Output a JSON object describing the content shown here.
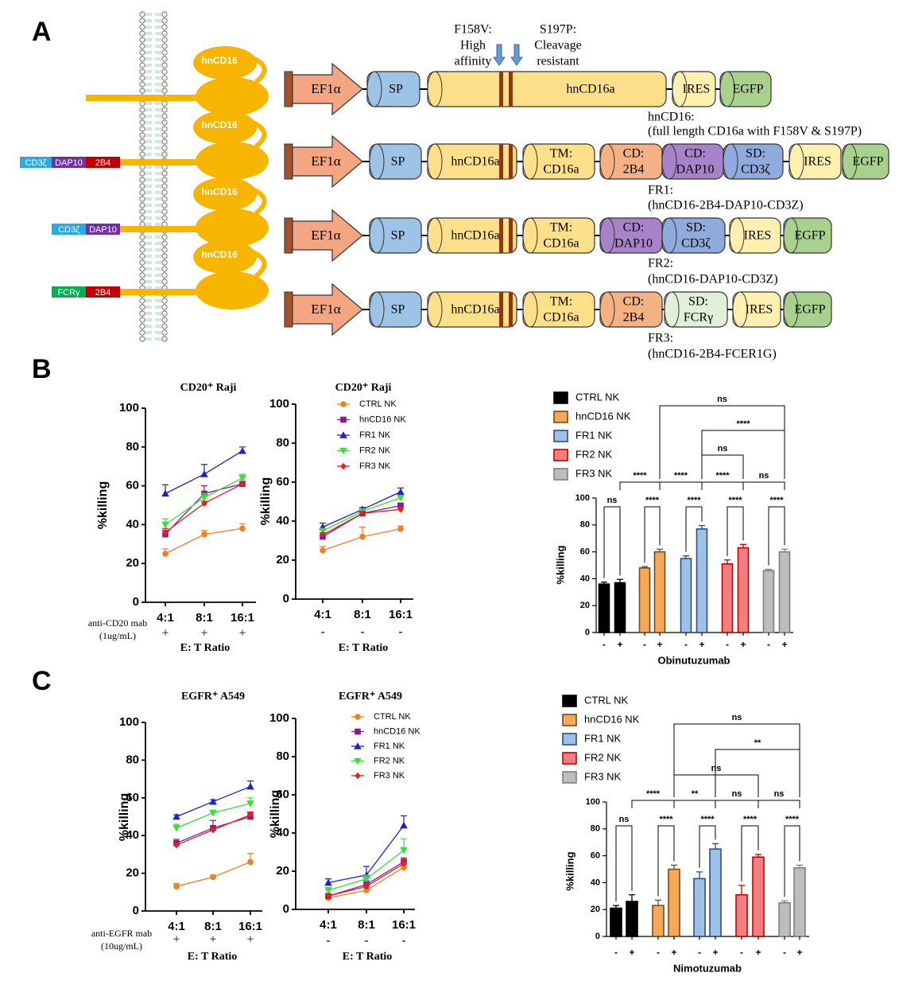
{
  "panels": [
    "A",
    "B",
    "C"
  ],
  "diagram": {
    "mutations": [
      [
        "F158V:",
        "High",
        "affinity"
      ],
      [
        "S197P:",
        "Cleavage",
        "resistant"
      ]
    ],
    "receptors": [
      {
        "ectodomain": "hnCD16",
        "intracellular": []
      },
      {
        "ectodomain": "hnCD16",
        "intracellular": [
          {
            "name": "CD3ζ",
            "color": "#29abe2"
          },
          {
            "name": "DAP10",
            "color": "#7030a0"
          },
          {
            "name": "2B4",
            "color": "#c00000"
          }
        ]
      },
      {
        "ectodomain": "hnCD16",
        "intracellular": [
          {
            "name": "CD3ζ",
            "color": "#29abe2"
          },
          {
            "name": "DAP10",
            "color": "#7030a0"
          }
        ]
      },
      {
        "ectodomain": "hnCD16",
        "intracellular": [
          {
            "name": "FCRγ",
            "color": "#00b050"
          },
          {
            "name": "2B4",
            "color": "#c00000"
          }
        ]
      }
    ],
    "constructs": [
      {
        "promoter": "EF1α",
        "segments": [
          {
            "text": [
              "SP"
            ],
            "color": "#9dc3e6"
          },
          {
            "text": [
              "hnCD16a"
            ],
            "color": "#ffe08a"
          },
          {
            "text": [
              "IRES"
            ],
            "color": "#fff0b0"
          },
          {
            "text": [
              "EGFP"
            ],
            "color": "#a9d18e"
          }
        ],
        "caption": [
          "hnCD16:",
          "(full length CD16a with F158V & S197P)"
        ]
      },
      {
        "promoter": "EF1α",
        "segments": [
          {
            "text": [
              "SP"
            ],
            "color": "#9dc3e6"
          },
          {
            "text": [
              "hnCD16a"
            ],
            "color": "#ffe08a"
          },
          {
            "text": [
              "TM:",
              "CD16a"
            ],
            "color": "#ffe08a"
          },
          {
            "text": [
              "CD:",
              "2B4"
            ],
            "color": "#f4b183"
          },
          {
            "text": [
              "CD:",
              "DAP10"
            ],
            "color": "#a983c9"
          },
          {
            "text": [
              "SD:",
              "CD3ζ"
            ],
            "color": "#8faadc"
          },
          {
            "text": [
              "IRES"
            ],
            "color": "#fff0b0"
          },
          {
            "text": [
              "EGFP"
            ],
            "color": "#a9d18e"
          }
        ],
        "caption": [
          "FR1:",
          "(hnCD16-2B4-DAP10-CD3Z)"
        ]
      },
      {
        "promoter": "EF1α",
        "segments": [
          {
            "text": [
              "SP"
            ],
            "color": "#9dc3e6"
          },
          {
            "text": [
              "hnCD16a"
            ],
            "color": "#ffe08a"
          },
          {
            "text": [
              "TM:",
              "CD16a"
            ],
            "color": "#ffe08a"
          },
          {
            "text": [
              "CD:",
              "DAP10"
            ],
            "color": "#a983c9"
          },
          {
            "text": [
              "SD:",
              "CD3ζ"
            ],
            "color": "#8faadc"
          },
          {
            "text": [
              "IRES"
            ],
            "color": "#fff0b0"
          },
          {
            "text": [
              "EGFP"
            ],
            "color": "#a9d18e"
          }
        ],
        "caption": [
          "FR2:",
          "(hnCD16-DAP10-CD3Z)"
        ]
      },
      {
        "promoter": "EF1α",
        "segments": [
          {
            "text": [
              "SP"
            ],
            "color": "#9dc3e6"
          },
          {
            "text": [
              "hnCD16a"
            ],
            "color": "#ffe08a"
          },
          {
            "text": [
              "TM:",
              "CD16a"
            ],
            "color": "#ffe08a"
          },
          {
            "text": [
              "CD:",
              "2B4"
            ],
            "color": "#f4b183"
          },
          {
            "text": [
              "SD:",
              "FCRγ"
            ],
            "color": "#e2f0d9"
          },
          {
            "text": [
              "IRES"
            ],
            "color": "#fff0b0"
          },
          {
            "text": [
              "EGFP"
            ],
            "color": "#a9d18e"
          }
        ],
        "caption": [
          "FR3:",
          "(hnCD16-2B4-FCER1G)"
        ]
      }
    ]
  },
  "chart_data": [
    {
      "type": "line",
      "title": "CD20⁺ Raji",
      "ylabel": "%killing",
      "xlabel": "E: T Ratio",
      "treatment_label": [
        "anti-CD20 mab",
        "(1ug/mL)"
      ],
      "treatment": [
        "+",
        "+",
        "+"
      ],
      "categories": [
        "4:1",
        "8:1",
        "16:1"
      ],
      "ylim": [
        0,
        100
      ],
      "yticks": [
        0,
        20,
        40,
        60,
        80,
        100
      ],
      "series": [
        {
          "color": "#f08020",
          "marker": "o",
          "values": [
            25,
            35,
            38
          ],
          "errors": [
            2.5,
            2,
            2.5
          ]
        },
        {
          "color": "#8b1a8b",
          "marker": "s",
          "values": [
            35,
            56,
            61
          ],
          "errors": [
            2,
            4,
            1
          ]
        },
        {
          "color": "#1f1fd0",
          "marker": "^",
          "values": [
            56,
            66,
            78
          ],
          "errors": [
            4.5,
            5,
            2
          ]
        },
        {
          "color": "#3adf3a",
          "marker": "v",
          "values": [
            40,
            54,
            64
          ],
          "errors": [
            3,
            2,
            2
          ]
        },
        {
          "color": "#e02020",
          "marker": "D",
          "values": [
            36,
            51,
            61
          ],
          "errors": [
            2,
            1,
            1
          ]
        }
      ]
    },
    {
      "type": "line",
      "title": "CD20⁺ Raji",
      "ylabel": "%killing",
      "xlabel": "E: T Ratio",
      "treatment": [
        "-",
        "-",
        "-"
      ],
      "categories": [
        "4:1",
        "8:1",
        "16:1"
      ],
      "ylim": [
        0,
        100
      ],
      "yticks": [
        0,
        20,
        40,
        60,
        80,
        100
      ],
      "series": [
        {
          "name": "CTRL NK",
          "color": "#f08020",
          "marker": "o",
          "values": [
            25,
            32,
            36
          ],
          "errors": [
            2,
            5,
            1.5
          ]
        },
        {
          "name": "hnCD16 NK",
          "color": "#8b1a8b",
          "marker": "s",
          "values": [
            32,
            44,
            48
          ],
          "errors": [
            2,
            1,
            1
          ]
        },
        {
          "name": "FR1 NK",
          "color": "#1f1fd0",
          "marker": "^",
          "values": [
            37,
            46,
            55
          ],
          "errors": [
            2,
            1,
            2
          ]
        },
        {
          "name": "FR2 NK",
          "color": "#3adf3a",
          "marker": "v",
          "values": [
            35,
            45,
            52
          ],
          "errors": [
            1,
            1,
            1
          ]
        },
        {
          "name": "FR3 NK",
          "color": "#e02020",
          "marker": "D",
          "values": [
            33,
            44,
            46
          ],
          "errors": [
            1,
            1,
            1
          ]
        }
      ]
    },
    {
      "type": "bar",
      "ylabel": "%killing",
      "xlabel": "Obinutuzumab",
      "categories": [
        "-",
        "+"
      ],
      "ylim": [
        0,
        100
      ],
      "yticks": [
        0,
        20,
        40,
        60,
        80,
        100
      ],
      "series": [
        {
          "name": "CTRL NK",
          "color": "#000000",
          "edgecolor": "#000000",
          "values": [
            36,
            37
          ],
          "errors": [
            1.5,
            2.5
          ]
        },
        {
          "name": "hnCD16 NK",
          "color": "#f5a85a",
          "edgecolor": "#7a4a16",
          "values": [
            48,
            60
          ],
          "errors": [
            1,
            2
          ]
        },
        {
          "name": "FR1 NK",
          "color": "#9ec1e6",
          "edgecolor": "#2c4f80",
          "values": [
            55,
            77
          ],
          "errors": [
            2,
            2.5
          ]
        },
        {
          "name": "FR2 NK",
          "color": "#f08080",
          "edgecolor": "#c00000",
          "values": [
            51,
            63
          ],
          "errors": [
            3,
            2.5
          ]
        },
        {
          "name": "FR3 NK",
          "color": "#bdbdbd",
          "edgecolor": "#7f7f7f",
          "values": [
            46,
            60
          ],
          "errors": [
            1,
            2
          ]
        }
      ],
      "annotations": [
        "ns",
        "****",
        "ns",
        "****",
        "****",
        "****",
        "ns",
        "ns",
        "****",
        "****",
        "****",
        "****"
      ]
    },
    {
      "type": "line",
      "title": "EGFR⁺ A549",
      "ylabel": "%killing",
      "xlabel": "E: T Ratio",
      "treatment_label": [
        "anti-EGFR mab",
        "(10ug/mL)"
      ],
      "treatment": [
        "+",
        "+",
        "+"
      ],
      "categories": [
        "4:1",
        "8:1",
        "16:1"
      ],
      "ylim": [
        0,
        100
      ],
      "yticks": [
        0,
        20,
        40,
        60,
        80,
        100
      ],
      "series": [
        {
          "color": "#f08020",
          "marker": "o",
          "values": [
            13,
            18,
            26
          ],
          "errors": [
            1.5,
            1,
            4.5
          ]
        },
        {
          "color": "#8b1a8b",
          "marker": "s",
          "values": [
            36,
            44,
            50
          ],
          "errors": [
            2,
            4,
            2
          ]
        },
        {
          "color": "#1f1fd0",
          "marker": "^",
          "values": [
            50,
            58,
            66
          ],
          "errors": [
            1,
            1,
            3
          ]
        },
        {
          "color": "#3adf3a",
          "marker": "v",
          "values": [
            44,
            52,
            57
          ],
          "errors": [
            2,
            1.5,
            3
          ]
        },
        {
          "color": "#e02020",
          "marker": "D",
          "values": [
            35,
            43,
            51
          ],
          "errors": [
            1,
            1,
            1.5
          ]
        }
      ]
    },
    {
      "type": "line",
      "title": "EGFR⁺ A549",
      "ylabel": "%killing",
      "xlabel": "E: T Ratio",
      "treatment": [
        "-",
        "-",
        "-"
      ],
      "categories": [
        "4:1",
        "8:1",
        "16:1"
      ],
      "ylim": [
        0,
        100
      ],
      "yticks": [
        0,
        20,
        40,
        60,
        80,
        100
      ],
      "series": [
        {
          "name": "CTRL NK",
          "color": "#f08020",
          "marker": "o",
          "values": [
            6,
            10,
            22
          ],
          "errors": [
            1,
            1,
            1
          ]
        },
        {
          "name": "hnCD16 NK",
          "color": "#8b1a8b",
          "marker": "s",
          "values": [
            7,
            13,
            25
          ],
          "errors": [
            1,
            2,
            2
          ]
        },
        {
          "name": "FR1 NK",
          "color": "#1f1fd0",
          "marker": "^",
          "values": [
            14,
            18,
            44
          ],
          "errors": [
            2,
            4.5,
            5
          ]
        },
        {
          "name": "FR2 NK",
          "color": "#3adf3a",
          "marker": "v",
          "values": [
            10,
            16,
            31
          ],
          "errors": [
            1.5,
            2,
            6
          ]
        },
        {
          "name": "FR3 NK",
          "color": "#e02020",
          "marker": "D",
          "values": [
            7,
            12,
            24
          ],
          "errors": [
            1,
            1,
            2
          ]
        }
      ]
    },
    {
      "type": "bar",
      "ylabel": "%killing",
      "xlabel": "Nimotuzumab",
      "categories": [
        "-",
        "+"
      ],
      "ylim": [
        0,
        100
      ],
      "yticks": [
        0,
        20,
        40,
        60,
        80,
        100
      ],
      "series": [
        {
          "name": "CTRL NK",
          "color": "#000000",
          "edgecolor": "#000000",
          "values": [
            21,
            26
          ],
          "errors": [
            2,
            5
          ]
        },
        {
          "name": "hnCD16 NK",
          "color": "#f5a85a",
          "edgecolor": "#7a4a16",
          "values": [
            23,
            50
          ],
          "errors": [
            4,
            3
          ]
        },
        {
          "name": "FR1 NK",
          "color": "#9ec1e6",
          "edgecolor": "#2c4f80",
          "values": [
            43,
            65
          ],
          "errors": [
            5,
            4
          ]
        },
        {
          "name": "FR2 NK",
          "color": "#f08080",
          "edgecolor": "#c00000",
          "values": [
            31,
            59
          ],
          "errors": [
            7,
            2
          ]
        },
        {
          "name": "FR3 NK",
          "color": "#bdbdbd",
          "edgecolor": "#7f7f7f",
          "values": [
            25,
            51
          ],
          "errors": [
            1.5,
            2
          ]
        }
      ],
      "annotations": [
        "ns",
        "**",
        "ns",
        "****",
        "**",
        "ns",
        "ns",
        "ns",
        "****",
        "****",
        "****",
        "****"
      ]
    }
  ]
}
